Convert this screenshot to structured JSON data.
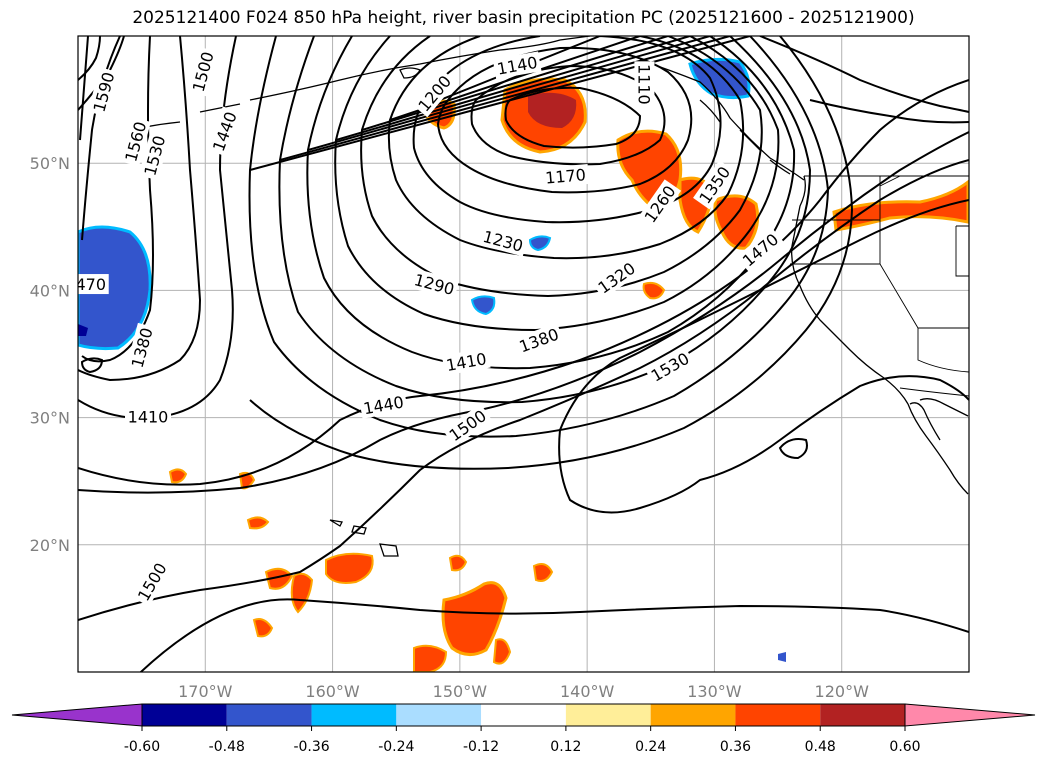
{
  "title": "2025121400 F024 850 hPa height, river basin precipitation PC (2025121600 - 2025121900)",
  "map": {
    "lon_range": [
      -180,
      -110
    ],
    "lat_range": [
      10,
      60
    ],
    "lon_ticks": [
      {
        "value": -170,
        "label": "170°W"
      },
      {
        "value": -160,
        "label": "160°W"
      },
      {
        "value": -150,
        "label": "150°W"
      },
      {
        "value": -140,
        "label": "140°W"
      },
      {
        "value": -130,
        "label": "130°W"
      },
      {
        "value": -120,
        "label": "120°W"
      }
    ],
    "lat_ticks": [
      {
        "value": 20,
        "label": "20°N"
      },
      {
        "value": 30,
        "label": "30°N"
      },
      {
        "value": 40,
        "label": "40°N"
      },
      {
        "value": 50,
        "label": "50°N"
      }
    ],
    "grid": true,
    "contour_labels": [
      {
        "text": "1590",
        "lon": -178.0,
        "lat": 55.6,
        "rot": -75
      },
      {
        "text": "1560",
        "lon": -175.5,
        "lat": 51.7,
        "rot": -75
      },
      {
        "text": "1530",
        "lon": -174.0,
        "lat": 50.6,
        "rot": -75
      },
      {
        "text": "1500",
        "lon": -170.2,
        "lat": 57.2,
        "rot": -75
      },
      {
        "text": "1440",
        "lon": -168.5,
        "lat": 52.5,
        "rot": -70
      },
      {
        "text": "1200",
        "lon": -152.0,
        "lat": 55.5,
        "rot": -50
      },
      {
        "text": "1140",
        "lon": -145.5,
        "lat": 57.7,
        "rot": -10
      },
      {
        "text": "1110",
        "lon": -135.5,
        "lat": 56.2,
        "rot": 90
      },
      {
        "text": "1170",
        "lon": -141.7,
        "lat": 49.0,
        "rot": -5
      },
      {
        "text": "1230",
        "lon": -146.6,
        "lat": 43.9,
        "rot": 15
      },
      {
        "text": "1260",
        "lon": -134.3,
        "lat": 46.8,
        "rot": -55
      },
      {
        "text": "1350",
        "lon": -130.0,
        "lat": 48.3,
        "rot": -55
      },
      {
        "text": "1290",
        "lon": -152.0,
        "lat": 40.5,
        "rot": 15
      },
      {
        "text": "1320",
        "lon": -137.7,
        "lat": 41.0,
        "rot": -35
      },
      {
        "text": "1470",
        "lon": -126.4,
        "lat": 43.2,
        "rot": -40
      },
      {
        "text": "1380",
        "lon": -143.8,
        "lat": 36.1,
        "rot": -20
      },
      {
        "text": "1410",
        "lon": -149.5,
        "lat": 34.4,
        "rot": -10
      },
      {
        "text": "1530",
        "lon": -133.5,
        "lat": 34.0,
        "rot": -30
      },
      {
        "text": "1440",
        "lon": -156.0,
        "lat": 31.0,
        "rot": -10
      },
      {
        "text": "1500",
        "lon": -149.4,
        "lat": 29.4,
        "rot": -35
      },
      {
        "text": "1410",
        "lon": -174.5,
        "lat": 30.1,
        "rot": 0
      },
      {
        "text": "1380",
        "lon": -175.0,
        "lat": 35.5,
        "rot": -75
      },
      {
        "text": "470",
        "lon": -179.0,
        "lat": 40.5,
        "rot": 0
      },
      {
        "text": "1500",
        "lon": -174.2,
        "lat": 17.1,
        "rot": -60
      }
    ]
  },
  "colorbar": {
    "colors": [
      "#9933cc",
      "#000096",
      "#3355cc",
      "#00bbff",
      "#aaddff",
      "#ffffff",
      "#ffee99",
      "#ffa500",
      "#ff4400",
      "#b22222",
      "#ff88aa"
    ],
    "ticks": [
      "-0.60",
      "-0.48",
      "-0.36",
      "-0.24",
      "-0.12",
      "0.12",
      "0.24",
      "0.36",
      "0.48",
      "0.60"
    ]
  }
}
